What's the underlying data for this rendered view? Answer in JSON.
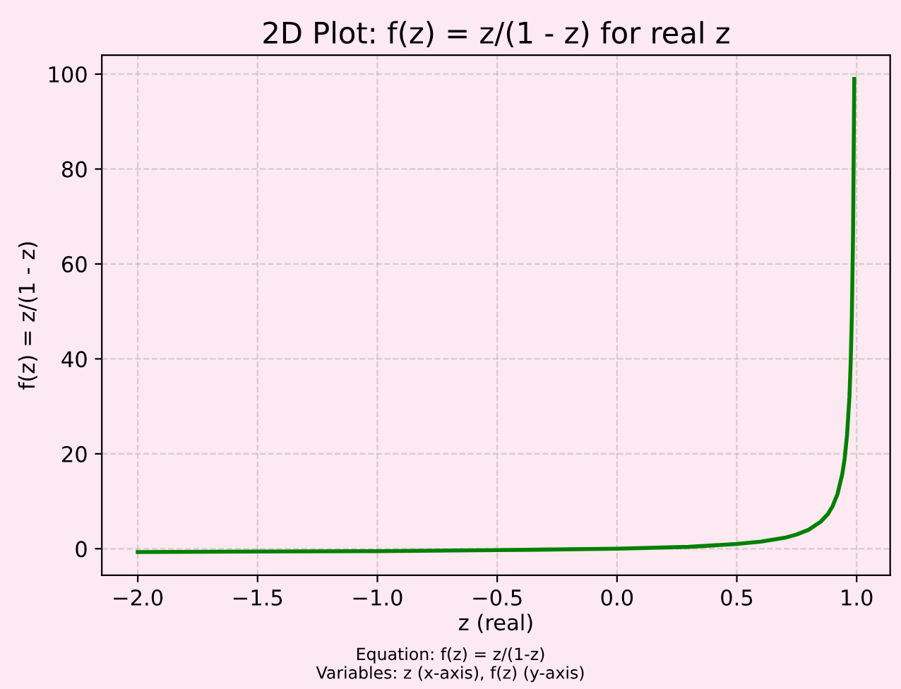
{
  "chart_data": {
    "type": "line",
    "title": "2D Plot: f(z) = z/(1 - z) for real z",
    "xlabel": "z (real)",
    "ylabel": "f(z) = z/(1 - z)",
    "annotations": [
      "Equation: f(z) = z/(1-z)\nVariables: z (x-axis), f(z) (y-axis)"
    ],
    "x": [
      -2,
      -1.5,
      -1,
      -0.5,
      0,
      0.3,
      0.5,
      0.6,
      0.7,
      0.75,
      0.8,
      0.85,
      0.88,
      0.9,
      0.92,
      0.94,
      0.95,
      0.96,
      0.97,
      0.975,
      0.98,
      0.985,
      0.99
    ],
    "series": [
      {
        "color": "#008000",
        "values": [
          -0.7,
          -0.6,
          -0.5,
          -0.3,
          0,
          0.4,
          1,
          1.5,
          2.3,
          3,
          4,
          5.7,
          7.3,
          9,
          11.5,
          15.7,
          19,
          24,
          32,
          39,
          49,
          66,
          99
        ]
      }
    ],
    "xlim": [
      -2.15,
      1.14
    ],
    "ylim": [
      -5.6,
      104
    ],
    "xticks": [
      {
        "value": -2,
        "label": "−2.0"
      },
      {
        "value": -1.5,
        "label": "−1.5"
      },
      {
        "value": -1,
        "label": "−1.0"
      },
      {
        "value": -0.5,
        "label": "−0.5"
      },
      {
        "value": 0,
        "label": "0.0"
      },
      {
        "value": 0.5,
        "label": "0.5"
      },
      {
        "value": 1,
        "label": "1.0"
      }
    ],
    "yticks": [
      0,
      20,
      40,
      60,
      80,
      100
    ],
    "grid": true,
    "line_style": "solid",
    "marker": "none"
  }
}
